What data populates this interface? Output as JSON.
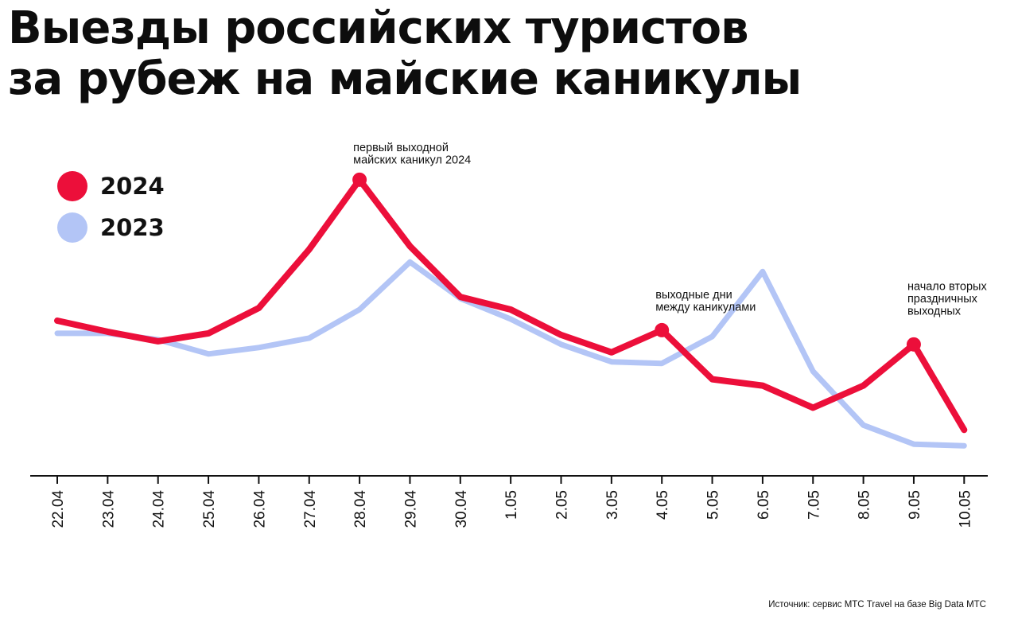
{
  "title_lines": [
    "Выезды российских туристов",
    "за рубеж на майские каникулы"
  ],
  "source": "Источник: сервис МТС Travel на базе Big Data МТС",
  "colors": {
    "series_2024": "#ec0f3a",
    "series_2023": "#b3c5f6",
    "axis": "#111111"
  },
  "chart_data": {
    "type": "line",
    "title": "Выезды российских туристов за рубеж на майские каникулы",
    "xlabel": "",
    "ylabel": "",
    "legend_position": "top-left",
    "grid": false,
    "categories": [
      "22.04",
      "23.04",
      "24.04",
      "25.04",
      "26.04",
      "27.04",
      "28.04",
      "29.04",
      "30.04",
      "1.05",
      "2.05",
      "3.05",
      "4.05",
      "5.05",
      "6.05",
      "7.05",
      "8.05",
      "9.05",
      "10.05"
    ],
    "ylim": [
      0,
      100
    ],
    "series": [
      {
        "name": "2024",
        "values": [
          49,
          45.5,
          42.5,
          45,
          53,
          71.5,
          93.5,
          72.5,
          56.5,
          52.5,
          44.5,
          39,
          46,
          30.5,
          28.5,
          21.5,
          28.5,
          41.5,
          14.5
        ],
        "highlighted_points": [
          6,
          12,
          17
        ]
      },
      {
        "name": "2023",
        "values": [
          45,
          45,
          43,
          38.5,
          40.5,
          43.5,
          52.5,
          67.5,
          56,
          49.5,
          41.5,
          36,
          35.5,
          44,
          64.5,
          33,
          16,
          10,
          9.5
        ]
      }
    ],
    "annotations": [
      {
        "point_index": 6,
        "series": "2024",
        "lines": [
          "первый выходной",
          "майских каникул 2024"
        ]
      },
      {
        "point_index": 12,
        "series": "2024",
        "lines": [
          "выходные дни",
          "между каникулами"
        ]
      },
      {
        "point_index": 17,
        "series": "2024",
        "lines": [
          "начало вторых",
          "праздничных",
          "выходных"
        ]
      }
    ]
  }
}
